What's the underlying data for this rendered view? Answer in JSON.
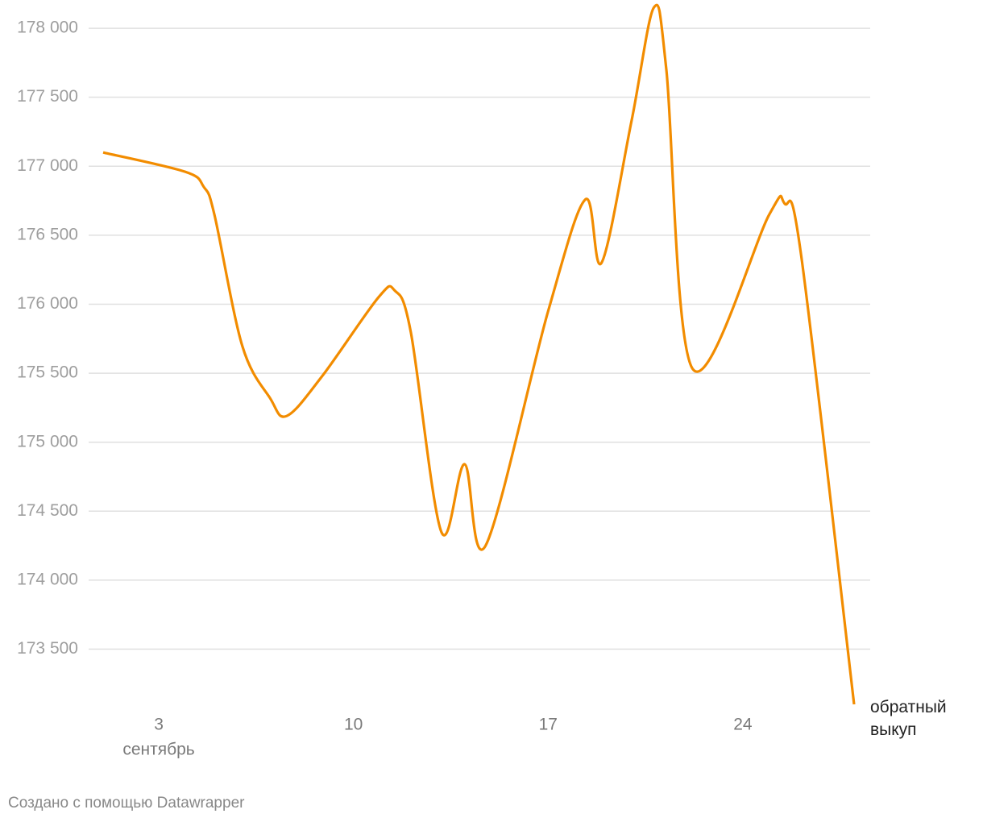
{
  "chart_data": {
    "type": "line",
    "x": [
      1,
      3.95,
      4.62,
      5,
      6,
      7,
      7.6,
      8.88,
      10.9,
      11.48,
      12.06,
      13.16,
      14,
      14.75,
      17,
      18.34,
      18.92,
      20,
      20.8,
      21.25,
      22.2,
      24.95,
      25.5,
      26.1,
      28
    ],
    "series": [
      {
        "name": "обратный выкуп",
        "color": "#f28c00",
        "values": [
          177100,
          176960,
          176850,
          176650,
          175700,
          175320,
          175190,
          175480,
          176050,
          176100,
          175800,
          174350,
          174840,
          174250,
          175950,
          176760,
          176300,
          177330,
          178150,
          177700,
          175530,
          176650,
          176730,
          176350,
          173100
        ]
      }
    ],
    "xlim": [
      1,
      28
    ],
    "xticks": [
      3,
      10,
      17,
      24
    ],
    "x_month_label": "сентябрь",
    "ylim": [
      173100,
      178150
    ],
    "yticks": [
      {
        "value": 173500,
        "label": "173 500"
      },
      {
        "value": 174000,
        "label": "174 000"
      },
      {
        "value": 174500,
        "label": "174 500"
      },
      {
        "value": 175000,
        "label": "175 000"
      },
      {
        "value": 175500,
        "label": "175 500"
      },
      {
        "value": 176000,
        "label": "176 000"
      },
      {
        "value": 176500,
        "label": "176 500"
      },
      {
        "value": 177000,
        "label": "177 000"
      },
      {
        "value": 177500,
        "label": "177 500"
      },
      {
        "value": 178000,
        "label": "178 000"
      }
    ],
    "grid": true,
    "credit": "Создано с помощью Datawrapper"
  }
}
